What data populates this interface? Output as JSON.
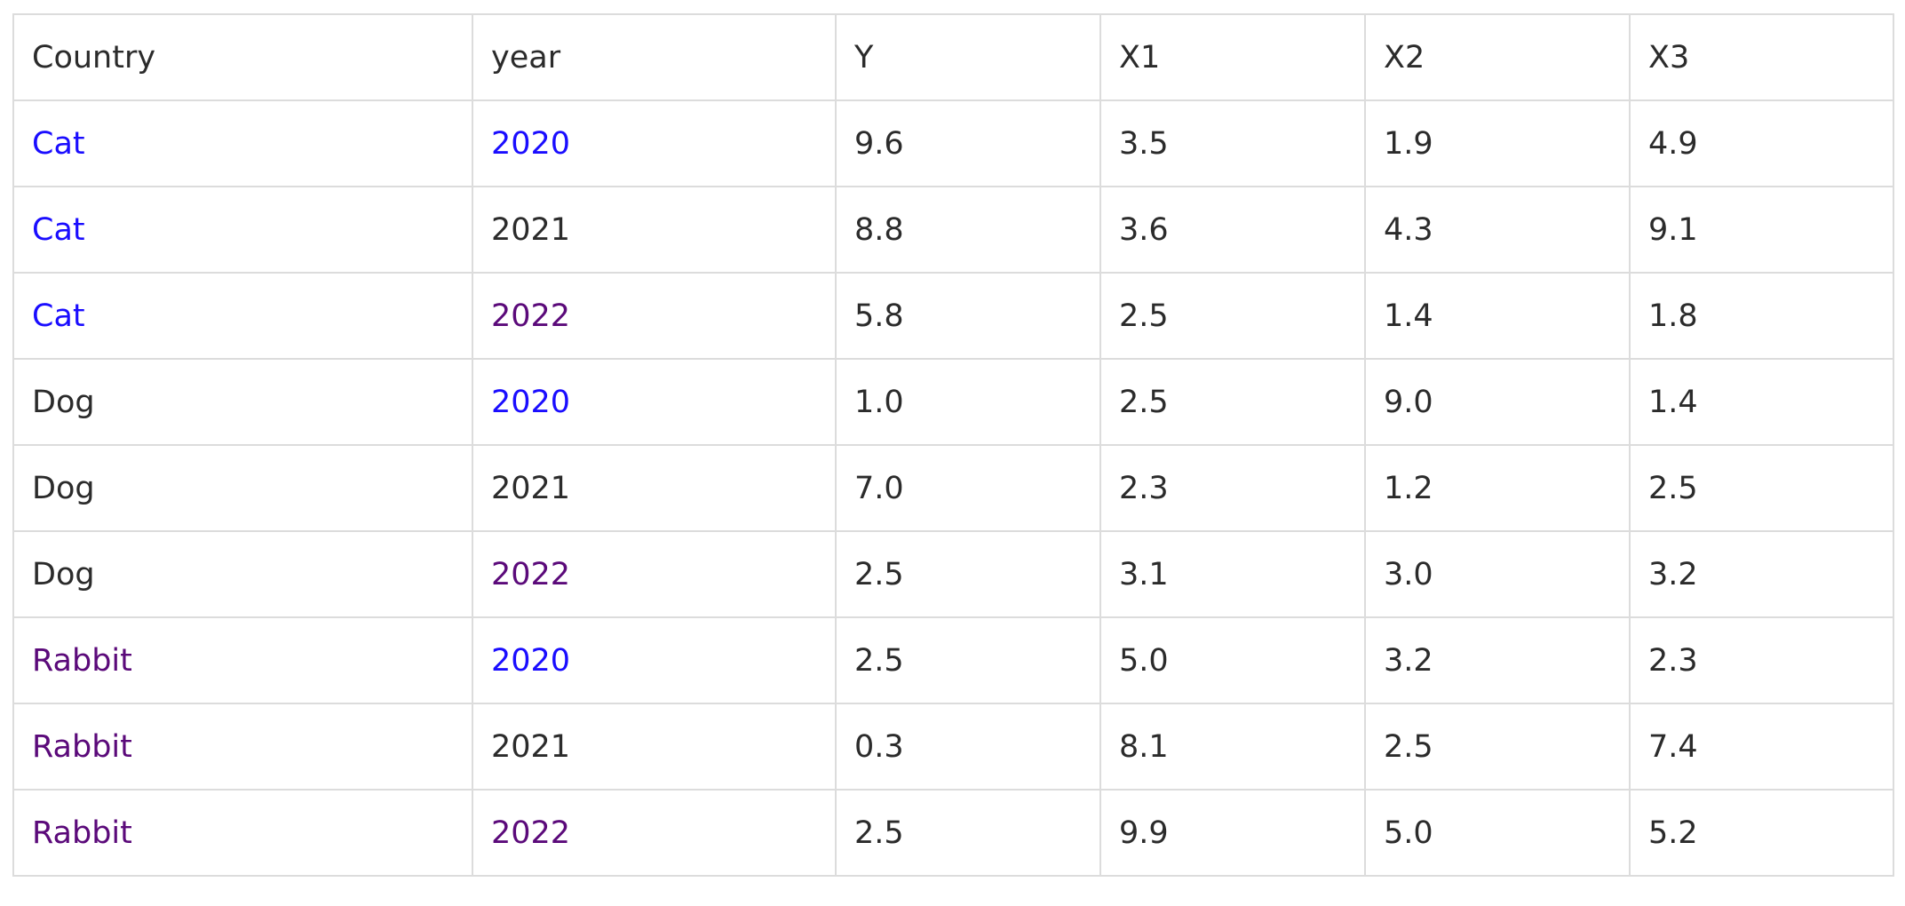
{
  "colors": {
    "text": "#2b2b2b",
    "link_unvisited": "#1a0dff",
    "link_visited": "#5b0a7a",
    "border": "#dcdcdc"
  },
  "table": {
    "headers": [
      "Country",
      "year",
      "Y",
      "X1",
      "X2",
      "X3"
    ],
    "rows": [
      {
        "cells": [
          "Cat",
          "2020",
          "9.6",
          "3.5",
          "1.9",
          "4.9"
        ],
        "country_style": "blue",
        "year_style": "blue"
      },
      {
        "cells": [
          "Cat",
          "2021",
          "8.8",
          "3.6",
          "4.3",
          "9.1"
        ],
        "country_style": "blue",
        "year_style": "default"
      },
      {
        "cells": [
          "Cat",
          "2022",
          "5.8",
          "2.5",
          "1.4",
          "1.8"
        ],
        "country_style": "blue",
        "year_style": "purple"
      },
      {
        "cells": [
          "Dog",
          "2020",
          "1.0",
          "2.5",
          "9.0",
          "1.4"
        ],
        "country_style": "default",
        "year_style": "blue"
      },
      {
        "cells": [
          "Dog",
          "2021",
          "7.0",
          "2.3",
          "1.2",
          "2.5"
        ],
        "country_style": "default",
        "year_style": "default"
      },
      {
        "cells": [
          "Dog",
          "2022",
          "2.5",
          "3.1",
          "3.0",
          "3.2"
        ],
        "country_style": "default",
        "year_style": "purple"
      },
      {
        "cells": [
          "Rabbit",
          "2020",
          "2.5",
          "5.0",
          "3.2",
          "2.3"
        ],
        "country_style": "purple",
        "year_style": "blue"
      },
      {
        "cells": [
          "Rabbit",
          "2021",
          "0.3",
          "8.1",
          "2.5",
          "7.4"
        ],
        "country_style": "purple",
        "year_style": "default"
      },
      {
        "cells": [
          "Rabbit",
          "2022",
          "2.5",
          "9.9",
          "5.0",
          "5.2"
        ],
        "country_style": "purple",
        "year_style": "purple"
      }
    ]
  }
}
